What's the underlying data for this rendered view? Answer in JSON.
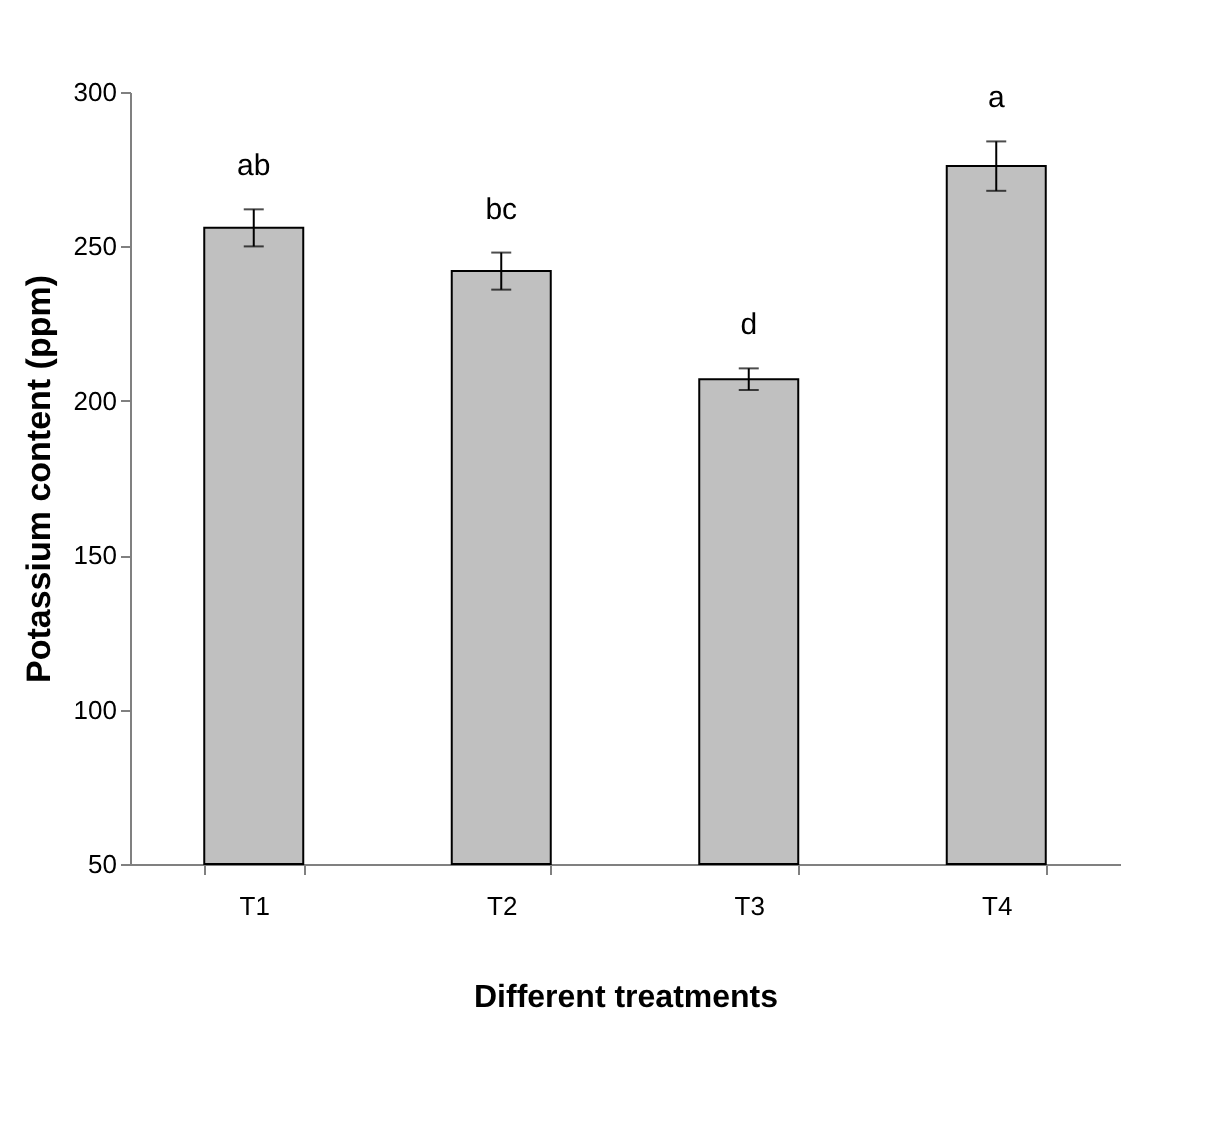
{
  "chart_data": {
    "type": "bar",
    "xlabel": "Different treatments",
    "ylabel": "Potassium content (ppm)",
    "categories": [
      "T1",
      "T2",
      "T3",
      "T4"
    ],
    "values": [
      256,
      242,
      207,
      276
    ],
    "errors": [
      6,
      6,
      3.5,
      8
    ],
    "color": "#c0c0c0",
    "ylim": [
      50,
      300
    ],
    "yticks": [
      50,
      100,
      150,
      200,
      250,
      300
    ],
    "annotations": [
      "ab",
      "bc",
      "d",
      "a"
    ],
    "grid": false
  }
}
